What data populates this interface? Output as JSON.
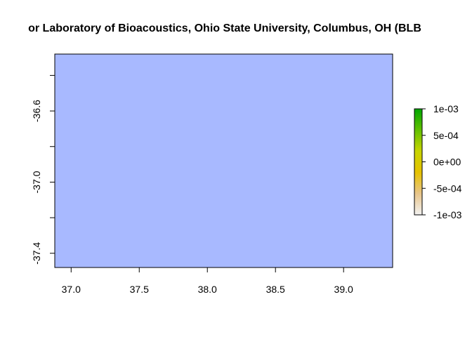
{
  "chart_data": {
    "type": "heatmap",
    "title": "or Laboratory of Bioacoustics, Ohio State University, Columbus, OH (BLB",
    "x_ticks": [
      "37.0",
      "37.5",
      "38.0",
      "38.5",
      "39.0"
    ],
    "x_tick_values": [
      37.0,
      37.5,
      38.0,
      38.5,
      39.0
    ],
    "y_ticks": [
      "-36.6",
      "-37.0",
      "-37.4"
    ],
    "y_tick_values": [
      -36.6,
      -37.0,
      -37.4
    ],
    "y_minor_tick_values": [
      -36.4,
      -36.8,
      -37.2
    ],
    "xlim": [
      36.88,
      39.36
    ],
    "ylim": [
      -37.48,
      -36.28
    ],
    "fill_color": "#a8b9ff",
    "legend": {
      "labels": [
        "1e-03",
        "5e-04",
        "0e+00",
        "-5e-04",
        "-1e-03"
      ],
      "values": [
        0.001,
        0.0005,
        0,
        -0.0005,
        -0.001
      ],
      "range": [
        -0.001,
        0.001
      ],
      "colors": [
        "#f2f2f2",
        "#e8c58a",
        "#e6c200",
        "#c8d400",
        "#62c000",
        "#00a600"
      ],
      "placement": "right"
    }
  }
}
